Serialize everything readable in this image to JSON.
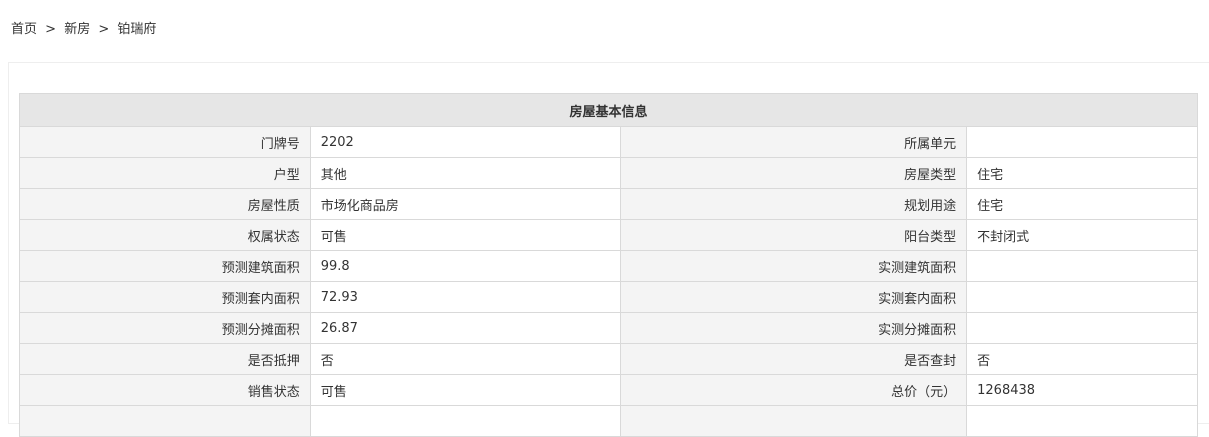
{
  "breadcrumb": {
    "items": [
      "首页",
      "新房",
      "铂瑞府"
    ],
    "separator": ">"
  },
  "table": {
    "title": "房屋基本信息",
    "rows": [
      {
        "l1": "门牌号",
        "v1": "2202",
        "l2": "所属单元",
        "v2": ""
      },
      {
        "l1": "户型",
        "v1": "其他",
        "l2": "房屋类型",
        "v2": "住宅"
      },
      {
        "l1": "房屋性质",
        "v1": "市场化商品房",
        "l2": "规划用途",
        "v2": "住宅"
      },
      {
        "l1": "权属状态",
        "v1": "可售",
        "l2": "阳台类型",
        "v2": "不封闭式"
      },
      {
        "l1": "预测建筑面积",
        "v1": "99.8",
        "l2": "实测建筑面积",
        "v2": ""
      },
      {
        "l1": "预测套内面积",
        "v1": "72.93",
        "l2": "实测套内面积",
        "v2": ""
      },
      {
        "l1": "预测分摊面积",
        "v1": "26.87",
        "l2": "实测分摊面积",
        "v2": ""
      },
      {
        "l1": "是否抵押",
        "v1": "否",
        "l2": "是否查封",
        "v2": "否"
      },
      {
        "l1": "销售状态",
        "v1": "可售",
        "l2": "总价（元）",
        "v2": "1268438"
      },
      {
        "l1": "",
        "v1": "",
        "l2": "",
        "v2": ""
      }
    ]
  }
}
